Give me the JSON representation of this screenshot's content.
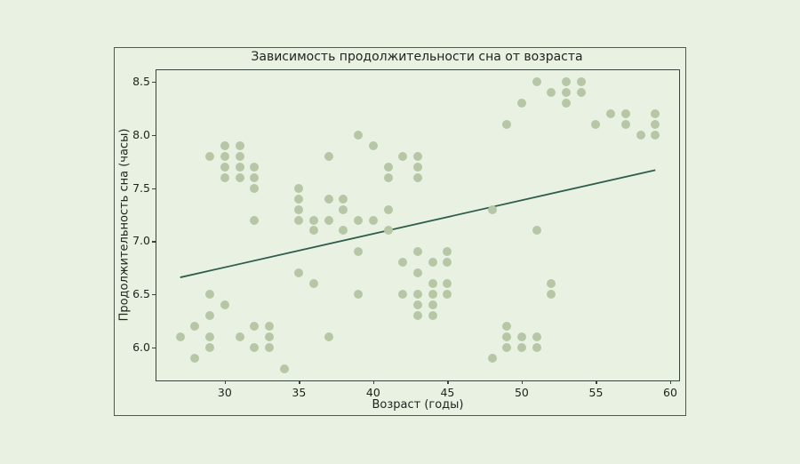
{
  "chart_data": {
    "type": "scatter",
    "title": "Зависимость продолжительности сна от возраста",
    "xlabel": "Возраст (годы)",
    "ylabel": "Продолжительность сна (часы)",
    "x_ticks": [
      30,
      35,
      40,
      45,
      50,
      55,
      60
    ],
    "y_ticks": [
      6.0,
      6.5,
      7.0,
      7.5,
      8.0,
      8.5
    ],
    "xlim": [
      25.4,
      60.6
    ],
    "ylim": [
      5.69,
      8.61
    ],
    "grid": false,
    "legend_position": "none",
    "colors": {
      "background": "#e9f1e2",
      "marker": "#b7c7a5",
      "trend_line": "#2f5d4c",
      "axes_frame": "#39443a",
      "text": "#20261f"
    },
    "points": [
      [
        27,
        6.1
      ],
      [
        28,
        6.2
      ],
      [
        28,
        5.9
      ],
      [
        29,
        7.8
      ],
      [
        29,
        6.5
      ],
      [
        29,
        6.3
      ],
      [
        29,
        6.1
      ],
      [
        29,
        6.0
      ],
      [
        30,
        7.9
      ],
      [
        30,
        7.8
      ],
      [
        30,
        7.7
      ],
      [
        30,
        7.6
      ],
      [
        30,
        6.4
      ],
      [
        31,
        7.9
      ],
      [
        31,
        7.8
      ],
      [
        31,
        7.7
      ],
      [
        31,
        7.6
      ],
      [
        31,
        6.1
      ],
      [
        32,
        7.7
      ],
      [
        32,
        7.6
      ],
      [
        32,
        7.5
      ],
      [
        32,
        7.2
      ],
      [
        32,
        6.2
      ],
      [
        32,
        6.0
      ],
      [
        33,
        6.2
      ],
      [
        33,
        6.1
      ],
      [
        33,
        6.0
      ],
      [
        34,
        5.8
      ],
      [
        35,
        7.5
      ],
      [
        35,
        7.4
      ],
      [
        35,
        7.3
      ],
      [
        35,
        7.2
      ],
      [
        35,
        6.7
      ],
      [
        36,
        7.2
      ],
      [
        36,
        7.1
      ],
      [
        36,
        6.6
      ],
      [
        37,
        7.8
      ],
      [
        37,
        7.4
      ],
      [
        37,
        7.2
      ],
      [
        37,
        6.1
      ],
      [
        38,
        7.4
      ],
      [
        38,
        7.3
      ],
      [
        38,
        7.1
      ],
      [
        39,
        8.0
      ],
      [
        39,
        7.2
      ],
      [
        39,
        6.9
      ],
      [
        39,
        6.5
      ],
      [
        40,
        7.9
      ],
      [
        40,
        7.2
      ],
      [
        41,
        7.7
      ],
      [
        41,
        7.6
      ],
      [
        41,
        7.3
      ],
      [
        41,
        7.1
      ],
      [
        42,
        7.8
      ],
      [
        42,
        6.8
      ],
      [
        42,
        6.5
      ],
      [
        43,
        7.8
      ],
      [
        43,
        7.7
      ],
      [
        43,
        7.6
      ],
      [
        43,
        6.9
      ],
      [
        43,
        6.7
      ],
      [
        43,
        6.5
      ],
      [
        43,
        6.4
      ],
      [
        43,
        6.3
      ],
      [
        44,
        6.8
      ],
      [
        44,
        6.6
      ],
      [
        44,
        6.5
      ],
      [
        44,
        6.4
      ],
      [
        44,
        6.3
      ],
      [
        45,
        6.9
      ],
      [
        45,
        6.8
      ],
      [
        45,
        6.6
      ],
      [
        45,
        6.5
      ],
      [
        48,
        7.3
      ],
      [
        48,
        5.9
      ],
      [
        49,
        8.1
      ],
      [
        49,
        6.2
      ],
      [
        49,
        6.1
      ],
      [
        49,
        6.0
      ],
      [
        50,
        8.3
      ],
      [
        50,
        6.1
      ],
      [
        50,
        6.0
      ],
      [
        51,
        8.5
      ],
      [
        51,
        7.1
      ],
      [
        51,
        6.1
      ],
      [
        51,
        6.0
      ],
      [
        52,
        8.4
      ],
      [
        52,
        6.6
      ],
      [
        52,
        6.5
      ],
      [
        53,
        8.5
      ],
      [
        53,
        8.4
      ],
      [
        53,
        8.3
      ],
      [
        54,
        8.5
      ],
      [
        54,
        8.4
      ],
      [
        55,
        8.1
      ],
      [
        56,
        8.2
      ],
      [
        57,
        8.2
      ],
      [
        57,
        8.1
      ],
      [
        58,
        8.0
      ],
      [
        59,
        8.2
      ],
      [
        59,
        8.1
      ],
      [
        59,
        8.0
      ]
    ],
    "trend_line": {
      "x1": 27,
      "y1": 6.66,
      "x2": 59,
      "y2": 7.67
    }
  }
}
